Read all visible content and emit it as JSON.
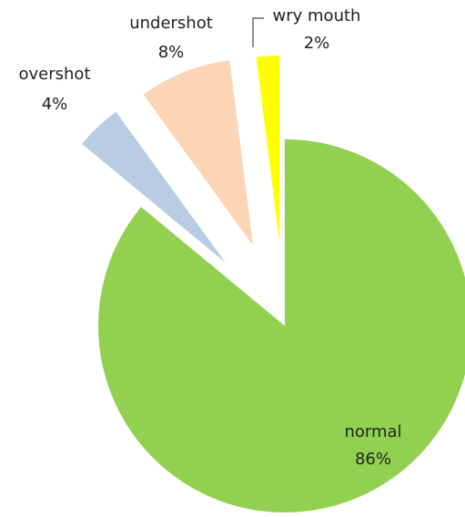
{
  "chart_data": {
    "type": "pie",
    "categories": [
      "normal",
      "overshot",
      "undershot",
      "wry mouth"
    ],
    "values": [
      86,
      4,
      8,
      2
    ],
    "value_labels": [
      "86%",
      "4%",
      "8%",
      "2%"
    ],
    "colors": [
      "#92d050",
      "#b8cce4",
      "#fbd5b5",
      "#ffff00"
    ]
  }
}
